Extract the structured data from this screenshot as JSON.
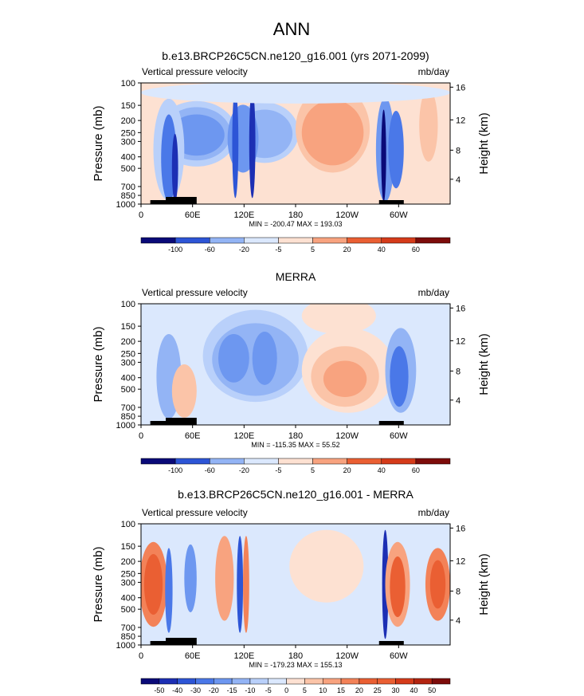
{
  "figure": {
    "title": "ANN"
  },
  "colors": {
    "blue": [
      "#0a0a78",
      "#1c2fb4",
      "#2d55d6",
      "#4a78e8",
      "#6d97f0",
      "#93b4f5",
      "#b9d0fa",
      "#dbe8fd"
    ],
    "red": [
      "#fde1d2",
      "#fbc4a8",
      "#f8a37f",
      "#f38258",
      "#ea5f33",
      "#d53b1a",
      "#b32410",
      "#7d0c0a"
    ],
    "terrain": "#000000"
  },
  "chart_data": [
    {
      "type": "heatmap",
      "title": "b.e13.BRCP26C5CN.ne120_g16.001 (yrs 2071-2099)",
      "variable": "Vertical pressure velocity",
      "units": "mb/day",
      "ylabel": "Pressure (mb)",
      "ylabel_right": "Height (km)",
      "x_ticks": [
        "0",
        "60E",
        "120E",
        "180",
        "120W",
        "60W"
      ],
      "y_ticks": [
        "100",
        "150",
        "200",
        "250",
        "300",
        "400",
        "500",
        "700",
        "850",
        "1000"
      ],
      "right_ticks": [
        "16",
        "12",
        "8",
        "4"
      ],
      "stats": "MIN = -200.47  MAX = 193.03",
      "colorbar_labels": [
        "-100",
        "-60",
        "-20",
        "-5",
        "5",
        "20",
        "40",
        "60"
      ],
      "pattern": "model"
    },
    {
      "type": "heatmap",
      "title": "MERRA",
      "variable": "Vertical pressure velocity",
      "units": "mb/day",
      "ylabel": "Pressure (mb)",
      "ylabel_right": "Height (km)",
      "x_ticks": [
        "0",
        "60E",
        "120E",
        "180",
        "120W",
        "60W"
      ],
      "y_ticks": [
        "100",
        "150",
        "200",
        "250",
        "300",
        "400",
        "500",
        "700",
        "850",
        "1000"
      ],
      "right_ticks": [
        "16",
        "12",
        "8",
        "4"
      ],
      "stats": "MIN = -115.35  MAX =  55.52",
      "colorbar_labels": [
        "-100",
        "-60",
        "-20",
        "-5",
        "5",
        "20",
        "40",
        "60"
      ],
      "pattern": "obs"
    },
    {
      "type": "heatmap",
      "title": "b.e13.BRCP26C5CN.ne120_g16.001 - MERRA",
      "variable": "Vertical pressure velocity",
      "units": "mb/day",
      "ylabel": "Pressure (mb)",
      "ylabel_right": "Height (km)",
      "x_ticks": [
        "0",
        "60E",
        "120E",
        "180",
        "120W",
        "60W"
      ],
      "y_ticks": [
        "100",
        "150",
        "200",
        "250",
        "300",
        "400",
        "500",
        "700",
        "850",
        "1000"
      ],
      "right_ticks": [
        "16",
        "12",
        "8",
        "4"
      ],
      "stats": "MIN = -179.23  MAX = 155.13",
      "colorbar_labels": [
        "-50",
        "-40",
        "-30",
        "-20",
        "-15",
        "-10",
        "-5",
        "0",
        "5",
        "10",
        "15",
        "20",
        "25",
        "30",
        "40",
        "50"
      ],
      "pattern": "diff"
    }
  ]
}
